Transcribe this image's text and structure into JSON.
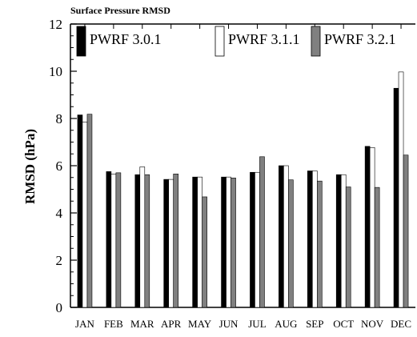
{
  "chart_data": {
    "type": "bar",
    "title": "Surface Pressure RMSD",
    "ylabel": "RMSD (hPa)",
    "xlabel": "",
    "ylim": [
      0,
      12
    ],
    "yticks": [
      0,
      2,
      4,
      6,
      8,
      10,
      12
    ],
    "categories": [
      "JAN",
      "FEB",
      "MAR",
      "APR",
      "MAY",
      "JUN",
      "JUL",
      "AUG",
      "SEP",
      "OCT",
      "NOV",
      "DEC"
    ],
    "series": [
      {
        "name": "PWRF 3.0.1",
        "color": "#000000",
        "values": [
          8.15,
          5.75,
          5.62,
          5.42,
          5.52,
          5.52,
          5.72,
          6.0,
          5.78,
          5.62,
          6.82,
          9.28
        ]
      },
      {
        "name": "PWRF 3.1.1",
        "color": "#ffffff",
        "values": [
          7.85,
          5.65,
          5.95,
          5.42,
          5.52,
          5.52,
          5.72,
          6.0,
          5.78,
          5.62,
          6.77,
          9.97
        ]
      },
      {
        "name": "PWRF 3.2.1",
        "color": "#808080",
        "values": [
          8.18,
          5.7,
          5.62,
          5.65,
          4.68,
          5.48,
          6.38,
          5.4,
          5.35,
          5.1,
          5.08,
          6.45
        ]
      }
    ],
    "legend_position": "top",
    "grid": false
  }
}
